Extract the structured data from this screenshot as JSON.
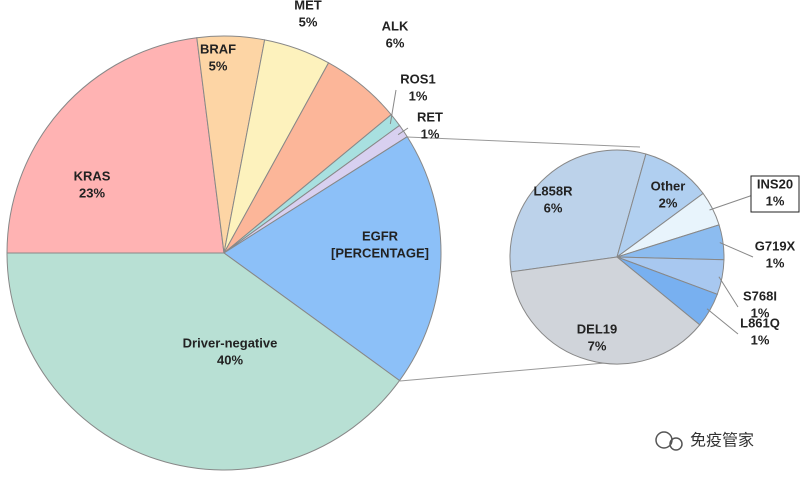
{
  "chart_data": [
    {
      "type": "pie",
      "categories": [
        "KRAS",
        "BRAF",
        "MET",
        "ALK",
        "ROS1",
        "RET",
        "EGFR",
        "Driver-negative"
      ],
      "values": [
        23,
        5,
        5,
        6,
        1,
        1,
        19,
        40
      ],
      "value_labels": [
        "23%",
        "5%",
        "5%",
        "6%",
        "1%",
        "1%",
        "[PERCENTAGE]",
        "40%"
      ],
      "colors": [
        "#ffb3b3",
        "#fdd5a5",
        "#fdf2bd",
        "#fcb699",
        "#a8e0e0",
        "#d8d0f0",
        "#8cc0f8",
        "#b8e0d4"
      ]
    },
    {
      "type": "pie",
      "categories": [
        "L858R",
        "Other",
        "INS20",
        "G719X",
        "S768I",
        "L861Q",
        "DEL19"
      ],
      "values": [
        6,
        2,
        1,
        1,
        1,
        1,
        7
      ],
      "value_labels": [
        "6%",
        "2%",
        "1%",
        "1%",
        "1%",
        "1%",
        "7%"
      ],
      "colors": [
        "#bcd2ea",
        "#b0cff0",
        "#e8f4fc",
        "#8cbcf0",
        "#a8c8f0",
        "#78b0f0",
        "#d0d4da"
      ]
    }
  ],
  "watermark": "免疫管家"
}
